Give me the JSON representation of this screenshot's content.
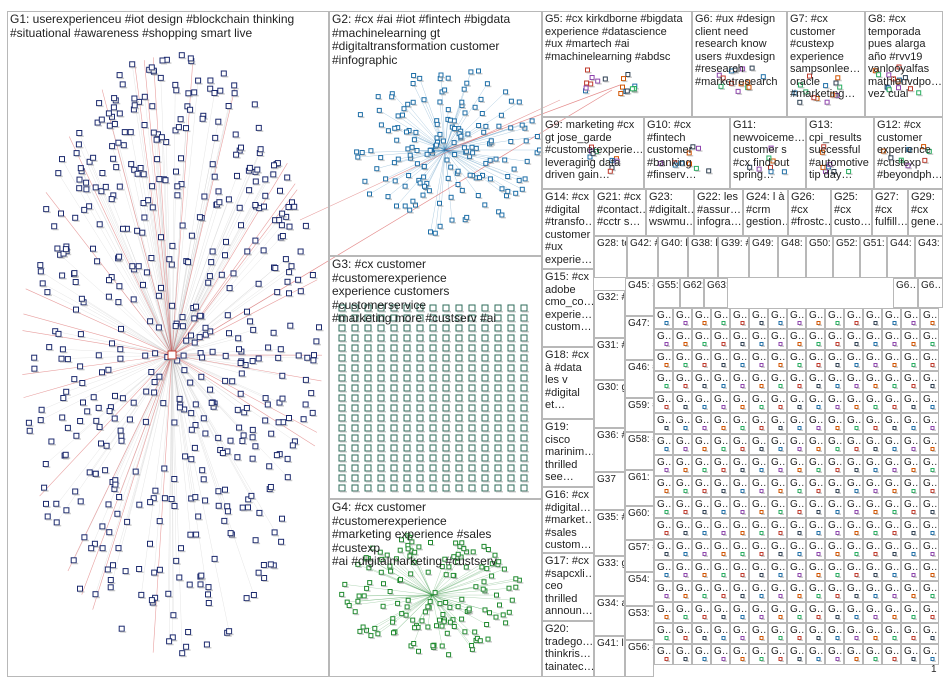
{
  "colors": {
    "cell_border": "#b8b8b8",
    "label_text": "#222222",
    "g1_node": "#1c2a6e",
    "g2_node": "#1e6fa8",
    "g3_node": "#2e6b5a",
    "g4_node": "#1f8a2e",
    "cross_edge": "#d24040",
    "edge_gray": "#b4b4b4"
  },
  "groups": {
    "G1": "G1: userexperienceu #iot design #blockchain thinking\n#situational #awareness #shopping smart live",
    "G2": "G2: #cx #ai #iot #fintech #bigdata\n#machinelearning gt\n#digitaltransformation customer\n#infographic",
    "G3": "G3: #cx customer #customerexperience\nexperience customers #customerservice\n#marketing more #custserv #ai",
    "G4": "G4: #cx customer #customerexperience\n#marketing experience #sales #custexp\n#ai #digitalmarketing #custserv",
    "G5": "G5: #cx kirkdborne #bigdata\nexperience #datascience\n#ux #martech #ai\n#machinelearning #abdsc",
    "G6": "G6: #ux #design\nclient need\nresearch know\nusers #uxdesign\n#research\n#marketresearch",
    "G7": "G7: #cx\ncustomer\n#custexp\nexperience\nsampsonlee…\noracle\n#marketing…",
    "G8": "G8: #cx\ntemporada\npues alarga\naño #rvv19\nvanlooyalfas\nmathieuvdpo…\nvez cual",
    "G9": "G9: marketing #cx\ngt jose_garde\n#customerexperie…\nleveraging data\ndriven gain…",
    "G10": "G10: #cx\n#fintech\ncustomer\n#banking\n#finserv…",
    "G11": "G11:\nnewvoiceme…\ncustomer s\n#cx find out\nspring…",
    "G12": "G12: #cx\ncustomer\nexperience\n#custexp\n#beyondph…",
    "G13": "G13:\ncpi_results\nsuccessful\n#automotive\ntip day…",
    "G14": "G14: #cx\n#digital\n#transfo…\ncustomer\n#ux\nexperie…",
    "G15": "G15: #cx\nadobe\ncmo_co…\nexperie…\ncustom…",
    "G16": "G16: #cx\n#digital…\n#market…\n#sales\ncustom…",
    "G17": "G17: #cx\n#sapcxli…\nceo\nthrilled\nannoun…",
    "G18": "G18: #cx\nà #data\nles v\n#digital\net…",
    "G19": "G19:\ncisco\nmarinim…\nthrilled\nsee…",
    "G20": "G20:\ntradego…\nthinkris…\ntainatec…",
    "G21": "G21: #cx\n#contact…\n#cctr s…",
    "G22": "G22: les\n#assur…\ninfogra…",
    "G23": "G23:\n#digitalt…\nwswmu…",
    "G24": "G24: l à\n#crm\ngestion…",
    "G25": "G25:\n#cx\ncusto…",
    "G26": "G26:\n#cx\n#frostc…",
    "G27": "G27:\n#cx\nfulfill…",
    "G28": "G28:\nte_g…\nemp…",
    "G29": "G29:\n#cx\ngene…",
    "G30": "G30:\ngt\nbusi…",
    "G31": "G31:\n#cx\nlates…",
    "G32": "G32:\n#cx\ncust…",
    "G33": "G33:\ngart…\n#cx…",
    "G34": "G34:\navec\n#ma…",
    "G35": "G35:\n#cx\nkust…",
    "G36": "G36:\n#cx\n#cus…",
    "G37": "G37",
    "G38": "G38:\nles…",
    "G39": "G39:\n#cx…",
    "G40": "G40:\nbett…",
    "G41": "G41:\nllega…",
    "G42": "G42:\n#mr…",
    "G43": "G43:\nnex…",
    "G44": "G44:\nstaf…",
    "G45": "G45:\n#iu\n#fre…",
    "G46": "G46:\n#cx\ngt…",
    "G47": "G47:\nbest\ncou…",
    "G48": "G48:\nbott…",
    "G49": "G49:\ncat…",
    "G50": "G50:\ntalk…",
    "G51": "G51:\nstaf…",
    "G52": "G52:\ntalk…",
    "G53": "G53:\nlin…",
    "G54": "G54:\ncus…",
    "G55": "G55:\n#cx",
    "G56": "G56:\n#cx…",
    "G57": "G57:\n#cu…",
    "G58": "G58:\n#ex…\nbe…",
    "G59": "G59:\n#l",
    "G60": "G60:\nsee…\ntru…",
    "G61": "G61:\nha…",
    "G62": "G62:\n#cx",
    "G63": "G63:\n#cx",
    "G64": "G6…",
    "G65": "G6…\npar…",
    "small_label": "G…",
    "tiny_right_label": "1"
  }
}
